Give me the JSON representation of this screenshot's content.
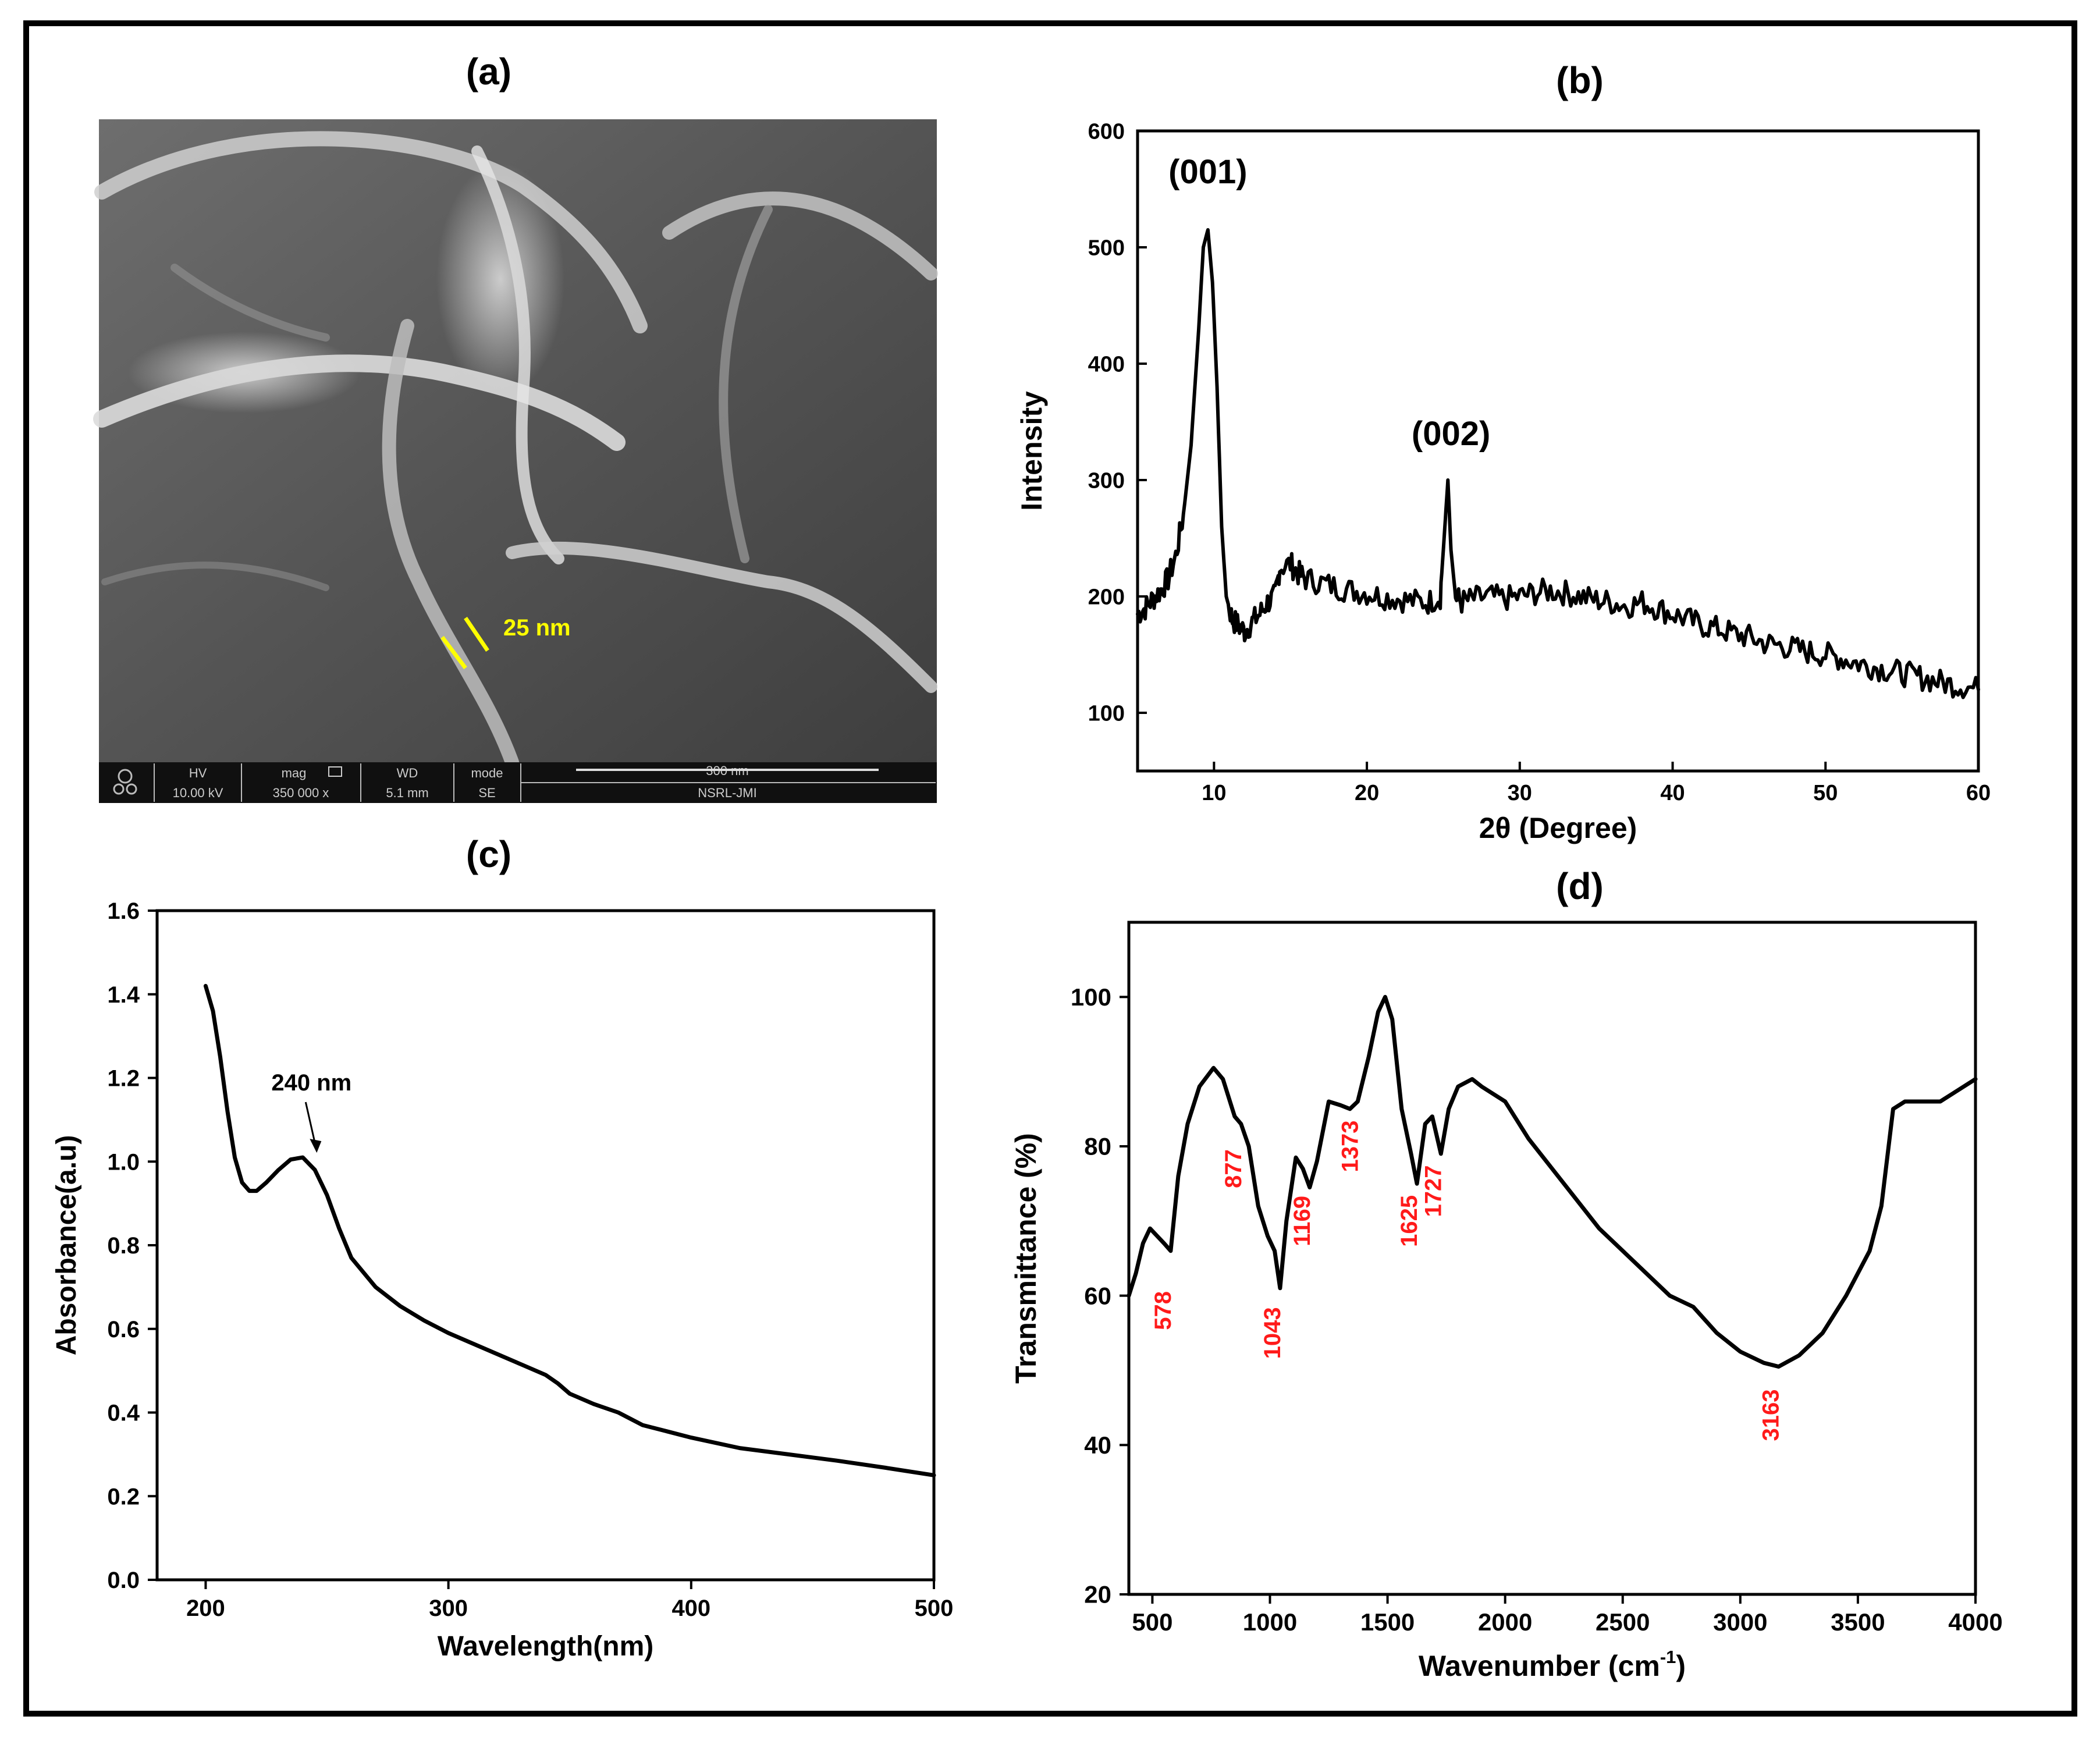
{
  "panel_labels": {
    "a": "(a)",
    "b": "(b)",
    "c": "(c)",
    "d": "(d)"
  },
  "colors": {
    "line": "#000000",
    "annotation_red": "#ff1a1a",
    "sem_annotation_yellow": "#ffff00"
  },
  "sem_image": {
    "scale_annotation": "25 nm",
    "info_bar": {
      "headers": [
        "HV",
        "mag",
        "WD",
        "mode",
        "300 nm"
      ],
      "values": [
        "10.00 kV",
        "350 000 x",
        "5.1 mm",
        "SE",
        "NSRL-JMI"
      ]
    }
  },
  "chart_data": [
    {
      "type": "line",
      "panel": "b",
      "title": "",
      "xlabel": "2θ (Degree)",
      "ylabel": "Intensity",
      "xlim": [
        5,
        60
      ],
      "ylim": [
        50,
        600
      ],
      "xticks": [
        10,
        20,
        30,
        40,
        50,
        60
      ],
      "yticks": [
        100,
        200,
        300,
        400,
        500,
        600
      ],
      "annotations": [
        {
          "text": "(001)",
          "x": 9.6,
          "y": 555
        },
        {
          "text": "(002)",
          "x": 25.5,
          "y": 330
        }
      ],
      "series": [
        {
          "name": "XRD",
          "x": [
            5,
            5.5,
            6,
            6.5,
            7,
            7.5,
            8,
            8.5,
            9,
            9.3,
            9.6,
            9.9,
            10.2,
            10.5,
            10.8,
            11.2,
            11.6,
            12,
            12.5,
            13,
            13.5,
            14,
            14.3,
            15,
            15.5,
            16,
            17,
            18,
            19,
            20,
            21,
            22,
            23,
            24,
            24.8,
            25.1,
            25.3,
            25.5,
            25.8,
            26.2,
            27,
            28,
            29,
            30,
            31,
            32,
            33,
            34,
            35,
            36,
            37,
            38,
            39,
            40,
            41,
            42,
            43,
            44,
            45,
            46,
            47,
            48,
            49,
            50,
            51,
            52,
            53,
            54,
            55,
            56,
            57,
            58,
            59,
            60
          ],
          "y": [
            185,
            190,
            198,
            205,
            215,
            235,
            270,
            330,
            430,
            500,
            515,
            470,
            380,
            260,
            200,
            180,
            175,
            170,
            178,
            185,
            195,
            200,
            225,
            228,
            220,
            215,
            212,
            208,
            205,
            203,
            200,
            198,
            196,
            195,
            200,
            260,
            300,
            240,
            200,
            195,
            198,
            200,
            198,
            200,
            203,
            205,
            203,
            200,
            197,
            195,
            192,
            195,
            190,
            185,
            180,
            175,
            172,
            168,
            165,
            160,
            158,
            155,
            152,
            150,
            147,
            143,
            140,
            137,
            134,
            131,
            128,
            125,
            123,
            120
          ]
        }
      ]
    },
    {
      "type": "line",
      "panel": "c",
      "title": "",
      "xlabel": "Wavelength(nm)",
      "ylabel": "Absorbance(a.u)",
      "xlim": [
        180,
        500
      ],
      "ylim": [
        0.0,
        1.6
      ],
      "xticks": [
        200,
        300,
        400,
        500
      ],
      "yticks": [
        0.0,
        0.2,
        0.4,
        0.6,
        0.8,
        1.0,
        1.2,
        1.4,
        1.6
      ],
      "annotations": [
        {
          "text": "240 nm",
          "x": 240,
          "y": 1.01
        }
      ],
      "series": [
        {
          "name": "UV-Vis",
          "x": [
            200,
            203,
            206,
            209,
            212,
            215,
            218,
            221,
            225,
            230,
            235,
            240,
            245,
            250,
            255,
            260,
            270,
            280,
            290,
            300,
            310,
            320,
            330,
            340,
            345,
            350,
            360,
            370,
            380,
            390,
            400,
            420,
            440,
            460,
            480,
            500
          ],
          "y": [
            1.42,
            1.36,
            1.25,
            1.12,
            1.01,
            0.95,
            0.93,
            0.93,
            0.95,
            0.98,
            1.005,
            1.01,
            0.98,
            0.92,
            0.84,
            0.77,
            0.7,
            0.655,
            0.62,
            0.59,
            0.565,
            0.54,
            0.515,
            0.49,
            0.47,
            0.445,
            0.42,
            0.4,
            0.37,
            0.355,
            0.34,
            0.315,
            0.3,
            0.285,
            0.268,
            0.25
          ]
        }
      ]
    },
    {
      "type": "line",
      "panel": "d",
      "title": "",
      "xlabel": "Wavenumber (cm",
      "xlabel_sup": "-1",
      "xlabel_end": ")",
      "ylabel": "Transmittance (%)",
      "xlim": [
        400,
        4000
      ],
      "ylim": [
        20,
        110
      ],
      "xticks": [
        500,
        1000,
        1500,
        2000,
        2500,
        3000,
        3500,
        4000
      ],
      "yticks": [
        20,
        40,
        60,
        80,
        100
      ],
      "annotations": [
        {
          "text": "578",
          "x": 578,
          "y": 58
        },
        {
          "text": "877",
          "x": 877,
          "y": 77
        },
        {
          "text": "1043",
          "x": 1043,
          "y": 55
        },
        {
          "text": "1169",
          "x": 1169,
          "y": 70
        },
        {
          "text": "1373",
          "x": 1373,
          "y": 80
        },
        {
          "text": "1625",
          "x": 1625,
          "y": 70
        },
        {
          "text": "1727",
          "x": 1727,
          "y": 74
        },
        {
          "text": "3163",
          "x": 3163,
          "y": 44
        }
      ],
      "series": [
        {
          "name": "FTIR",
          "x": [
            400,
            430,
            460,
            490,
            520,
            550,
            578,
            610,
            650,
            700,
            760,
            800,
            850,
            877,
            910,
            950,
            990,
            1020,
            1043,
            1070,
            1110,
            1140,
            1169,
            1200,
            1250,
            1300,
            1340,
            1373,
            1420,
            1460,
            1490,
            1520,
            1560,
            1600,
            1625,
            1660,
            1690,
            1727,
            1760,
            1800,
            1860,
            1900,
            2000,
            2100,
            2200,
            2300,
            2400,
            2500,
            2600,
            2700,
            2800,
            2900,
            3000,
            3100,
            3163,
            3250,
            3350,
            3450,
            3550,
            3600,
            3650,
            3700,
            3750,
            3800,
            3850,
            3900,
            3950,
            4000
          ],
          "y": [
            60,
            63,
            67,
            69,
            68,
            67,
            66,
            76,
            83,
            88,
            90.5,
            89,
            84,
            83,
            80,
            72,
            68,
            66,
            61,
            70,
            78.5,
            77,
            74.5,
            78,
            86,
            85.5,
            85,
            86,
            92,
            98,
            100,
            97,
            85,
            79,
            75,
            83,
            84,
            79,
            85,
            88,
            89,
            88,
            86,
            81,
            77,
            73,
            69,
            66,
            63,
            60,
            58.5,
            55,
            52.5,
            51,
            50.5,
            52,
            55,
            60,
            66,
            72,
            85,
            86,
            86,
            86,
            86,
            87,
            88,
            89
          ]
        }
      ]
    }
  ]
}
